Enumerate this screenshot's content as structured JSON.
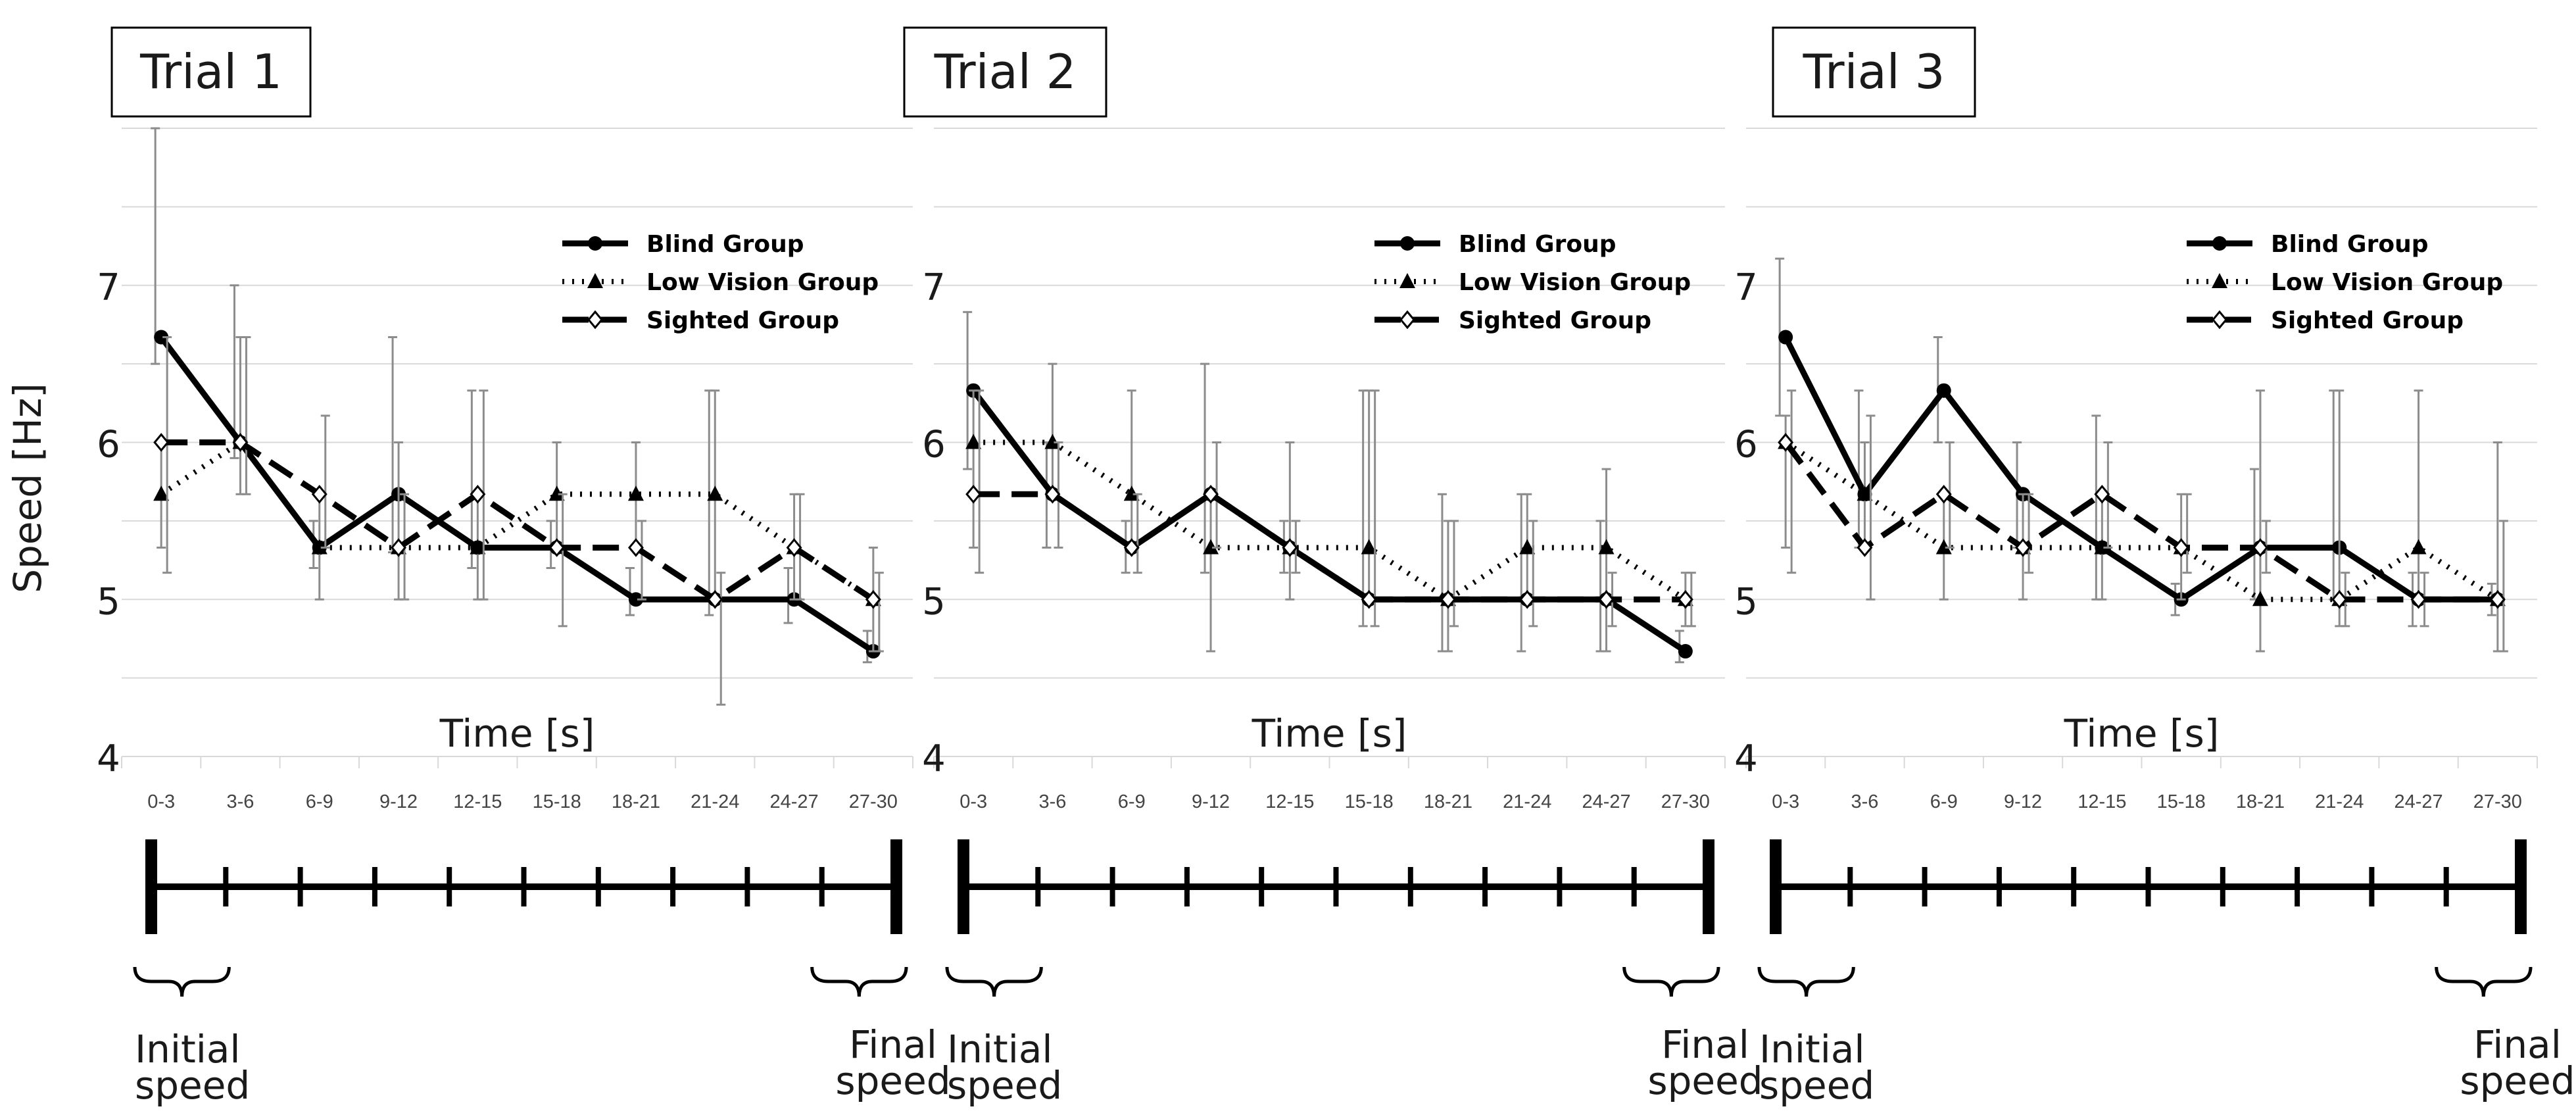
{
  "ylabel": "Speed [Hz]",
  "xlabel": "Time [s]",
  "ylim": [
    4,
    8
  ],
  "y_ticks": [
    "4",
    "5",
    "6",
    "7"
  ],
  "legend_entries": [
    "Blind Group",
    "Low Vision Group",
    "Sighted Group"
  ],
  "timeline": {
    "initial_label": [
      "Initial",
      "speed"
    ],
    "final_label": [
      "Final",
      "speed"
    ]
  },
  "colors": {
    "line": "#000000",
    "grid": "#d9d9d9",
    "error_bar": "#8c8c8c",
    "axis": "#000000"
  },
  "chart_data": [
    {
      "type": "line",
      "title": "Trial 1",
      "categories": [
        "0-3",
        "3-6",
        "6-9",
        "9-12",
        "12-15",
        "15-18",
        "18-21",
        "21-24",
        "24-27",
        "27-30"
      ],
      "xlabel": "Time [s]",
      "ylabel": "Speed [Hz]",
      "ylim": [
        4,
        8
      ],
      "series": [
        {
          "name": "Blind Group",
          "values": [
            6.67,
            6.0,
            5.33,
            5.67,
            5.33,
            5.33,
            5.0,
            5.0,
            5.0,
            4.67
          ],
          "err_low": [
            6.5,
            5.9,
            5.2,
            5.3,
            5.2,
            5.2,
            4.9,
            4.9,
            4.85,
            4.6
          ],
          "err_high": [
            8.0,
            7.0,
            5.5,
            6.67,
            6.33,
            5.5,
            5.2,
            6.33,
            5.2,
            4.8
          ]
        },
        {
          "name": "Low Vision Group",
          "values": [
            5.67,
            6.0,
            5.33,
            5.33,
            5.33,
            5.67,
            5.67,
            5.67,
            5.33,
            5.0
          ],
          "err_low": [
            5.33,
            5.67,
            5.0,
            5.0,
            5.0,
            5.33,
            5.33,
            5.0,
            5.0,
            4.67
          ],
          "err_high": [
            6.0,
            6.67,
            5.67,
            6.0,
            5.67,
            6.0,
            6.0,
            6.33,
            5.67,
            5.33
          ]
        },
        {
          "name": "Sighted Group",
          "values": [
            6.0,
            6.0,
            5.67,
            5.33,
            5.67,
            5.33,
            5.33,
            5.0,
            5.33,
            5.0
          ],
          "err_low": [
            5.17,
            5.67,
            5.33,
            5.0,
            5.0,
            4.83,
            5.0,
            4.33,
            5.0,
            4.67
          ],
          "err_high": [
            6.67,
            6.67,
            6.17,
            5.67,
            6.33,
            5.67,
            5.5,
            5.17,
            5.67,
            5.17
          ]
        }
      ]
    },
    {
      "type": "line",
      "title": "Trial 2",
      "categories": [
        "0-3",
        "3-6",
        "6-9",
        "9-12",
        "12-15",
        "15-18",
        "18-21",
        "21-24",
        "24-27",
        "27-30"
      ],
      "xlabel": "Time [s]",
      "ylabel": "Speed [Hz]",
      "ylim": [
        4,
        8
      ],
      "series": [
        {
          "name": "Blind Group",
          "values": [
            6.33,
            5.67,
            5.33,
            5.67,
            5.33,
            5.0,
            5.0,
            5.0,
            5.0,
            4.67
          ],
          "err_low": [
            5.83,
            5.33,
            5.17,
            5.17,
            5.17,
            4.83,
            4.67,
            4.67,
            4.67,
            4.6
          ],
          "err_high": [
            6.83,
            6.0,
            5.5,
            6.5,
            5.5,
            6.33,
            5.67,
            5.67,
            5.5,
            4.8
          ]
        },
        {
          "name": "Low Vision Group",
          "values": [
            6.0,
            6.0,
            5.67,
            5.33,
            5.33,
            5.33,
            5.0,
            5.33,
            5.33,
            5.0
          ],
          "err_low": [
            5.33,
            5.67,
            5.33,
            4.67,
            5.0,
            5.0,
            4.67,
            5.0,
            4.67,
            4.83
          ],
          "err_high": [
            6.33,
            6.5,
            6.33,
            5.67,
            6.0,
            6.33,
            5.5,
            5.67,
            5.83,
            5.17
          ]
        },
        {
          "name": "Sighted Group",
          "values": [
            5.67,
            5.67,
            5.33,
            5.67,
            5.33,
            5.0,
            5.0,
            5.0,
            5.0,
            5.0
          ],
          "err_low": [
            5.17,
            5.33,
            5.17,
            5.33,
            5.17,
            4.83,
            4.83,
            4.83,
            4.83,
            4.83
          ],
          "err_high": [
            6.33,
            6.0,
            5.67,
            6.0,
            5.5,
            6.33,
            5.5,
            5.5,
            5.17,
            5.17
          ]
        }
      ]
    },
    {
      "type": "line",
      "title": "Trial 3",
      "categories": [
        "0-3",
        "3-6",
        "6-9",
        "9-12",
        "12-15",
        "15-18",
        "18-21",
        "21-24",
        "24-27",
        "27-30"
      ],
      "xlabel": "Time [s]",
      "ylabel": "Speed [Hz]",
      "ylim": [
        4,
        8
      ],
      "series": [
        {
          "name": "Blind Group",
          "values": [
            6.67,
            5.67,
            6.33,
            5.67,
            5.33,
            5.0,
            5.33,
            5.33,
            5.0,
            5.0
          ],
          "err_low": [
            6.17,
            5.33,
            6.0,
            5.33,
            5.0,
            4.9,
            5.0,
            5.0,
            4.83,
            4.9
          ],
          "err_high": [
            7.17,
            6.33,
            6.67,
            6.0,
            6.17,
            5.1,
            5.83,
            6.33,
            5.17,
            5.1
          ]
        },
        {
          "name": "Low Vision Group",
          "values": [
            6.0,
            5.67,
            5.33,
            5.33,
            5.33,
            5.33,
            5.0,
            5.0,
            5.33,
            5.0
          ],
          "err_low": [
            5.33,
            5.33,
            5.0,
            5.0,
            5.0,
            5.0,
            4.67,
            4.83,
            5.0,
            4.67
          ],
          "err_high": [
            6.17,
            6.0,
            5.67,
            5.67,
            5.67,
            5.67,
            6.33,
            6.33,
            6.33,
            6.0
          ]
        },
        {
          "name": "Sighted Group",
          "values": [
            6.0,
            5.33,
            5.67,
            5.33,
            5.67,
            5.33,
            5.33,
            5.0,
            5.0,
            5.0
          ],
          "err_low": [
            5.17,
            5.0,
            5.33,
            5.17,
            5.33,
            5.17,
            5.17,
            4.83,
            4.83,
            4.67
          ],
          "err_high": [
            6.33,
            6.17,
            6.0,
            5.67,
            6.0,
            5.67,
            5.5,
            5.17,
            5.17,
            5.5
          ]
        }
      ]
    }
  ]
}
